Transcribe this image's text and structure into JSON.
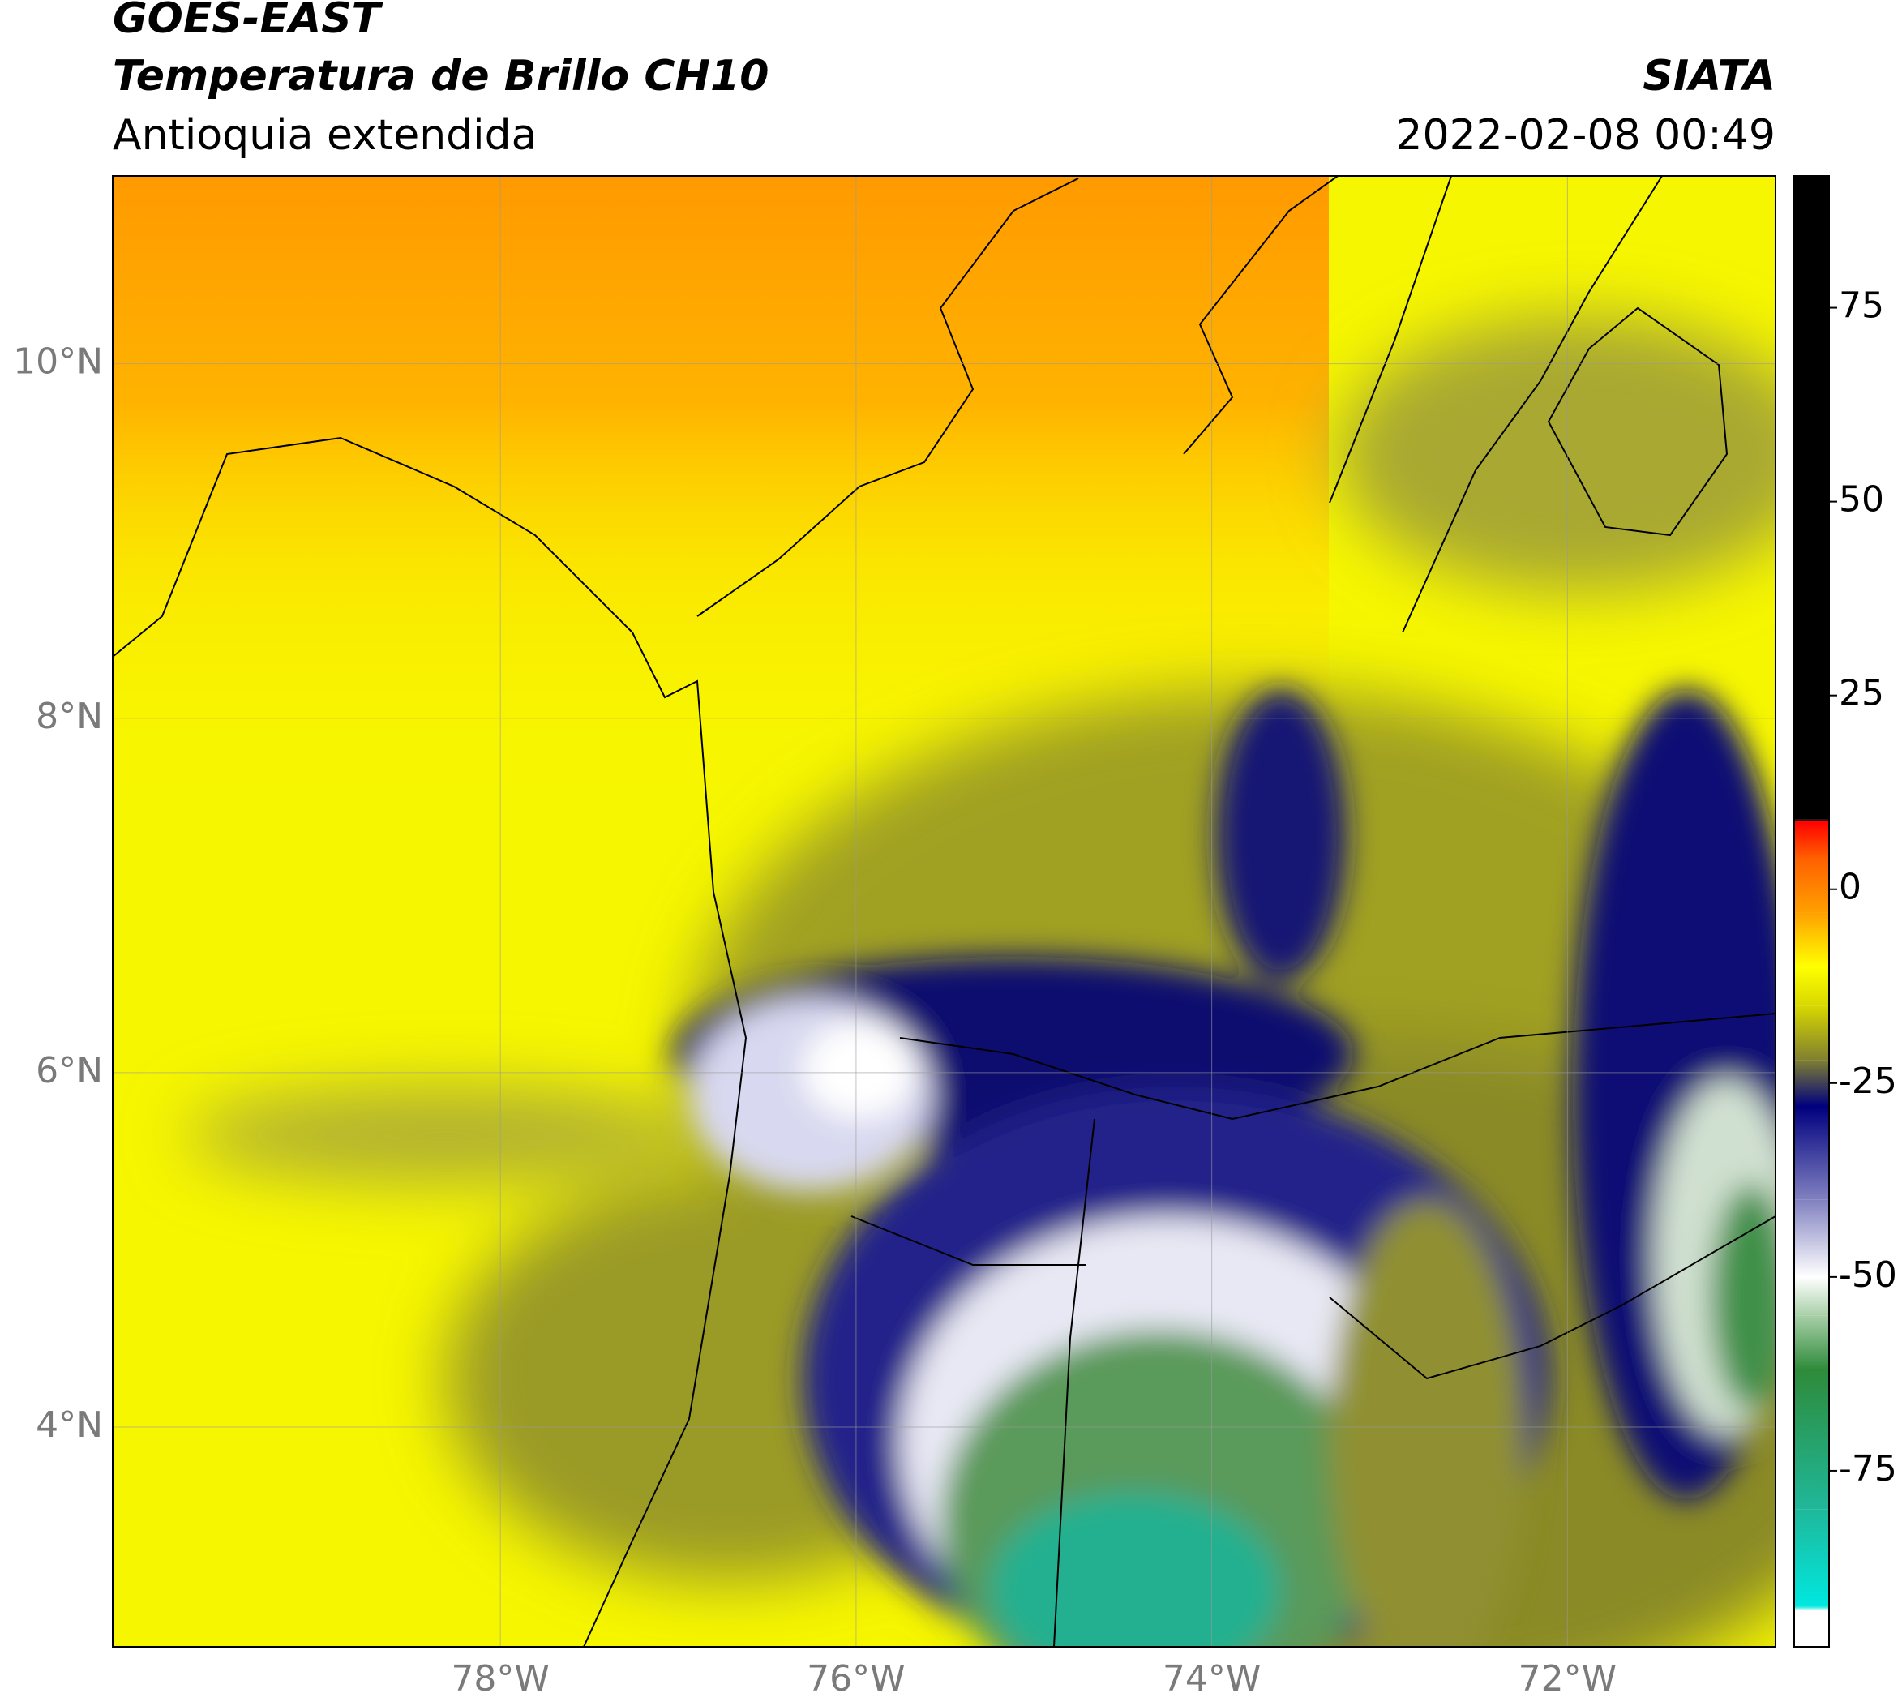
{
  "chart_data": {
    "type": "map",
    "title_lines": [
      "GOES-EAST",
      "Temperatura de Brillo CH10"
    ],
    "subtitle": "Antioquia extendida",
    "source": "SIATA",
    "timestamp": "2022-02-08 00:49",
    "xlim": [
      -80.18,
      -70.83
    ],
    "ylim": [
      2.76,
      11.06
    ],
    "xticks": [
      {
        "value": -78,
        "label": "78°W"
      },
      {
        "value": -76,
        "label": "76°W"
      },
      {
        "value": -74,
        "label": "74°W"
      },
      {
        "value": -72,
        "label": "72°W"
      }
    ],
    "yticks": [
      {
        "value": 4,
        "label": "4°N"
      },
      {
        "value": 6,
        "label": "6°N"
      },
      {
        "value": 8,
        "label": "8°N"
      },
      {
        "value": 10,
        "label": "10°N"
      }
    ],
    "grid": true,
    "colorbar": {
      "lim": [
        -97.7,
        92
      ],
      "ticks": [
        -75,
        -50,
        -25,
        0,
        25,
        50,
        75
      ],
      "colormap": [
        {
          "value": -97.7,
          "color": "#ffffff"
        },
        {
          "value": -93,
          "color": "#ffffff"
        },
        {
          "value": -92.5,
          "color": "#00e8e0"
        },
        {
          "value": -80,
          "color": "#1fb89a"
        },
        {
          "value": -62,
          "color": "#2e8b3a"
        },
        {
          "value": -55,
          "color": "#a8cfa8"
        },
        {
          "value": -50,
          "color": "#ffffff"
        },
        {
          "value": -40,
          "color": "#8080c0"
        },
        {
          "value": -28,
          "color": "#00007f"
        },
        {
          "value": -22,
          "color": "#808030"
        },
        {
          "value": -15,
          "color": "#d8d800"
        },
        {
          "value": -10,
          "color": "#ffff00"
        },
        {
          "value": -3,
          "color": "#ffa000"
        },
        {
          "value": 4,
          "color": "#ff6000"
        },
        {
          "value": 8.7,
          "color": "#ff0000"
        },
        {
          "value": 9,
          "color": "#000000"
        },
        {
          "value": 92,
          "color": "#000000"
        }
      ]
    }
  }
}
